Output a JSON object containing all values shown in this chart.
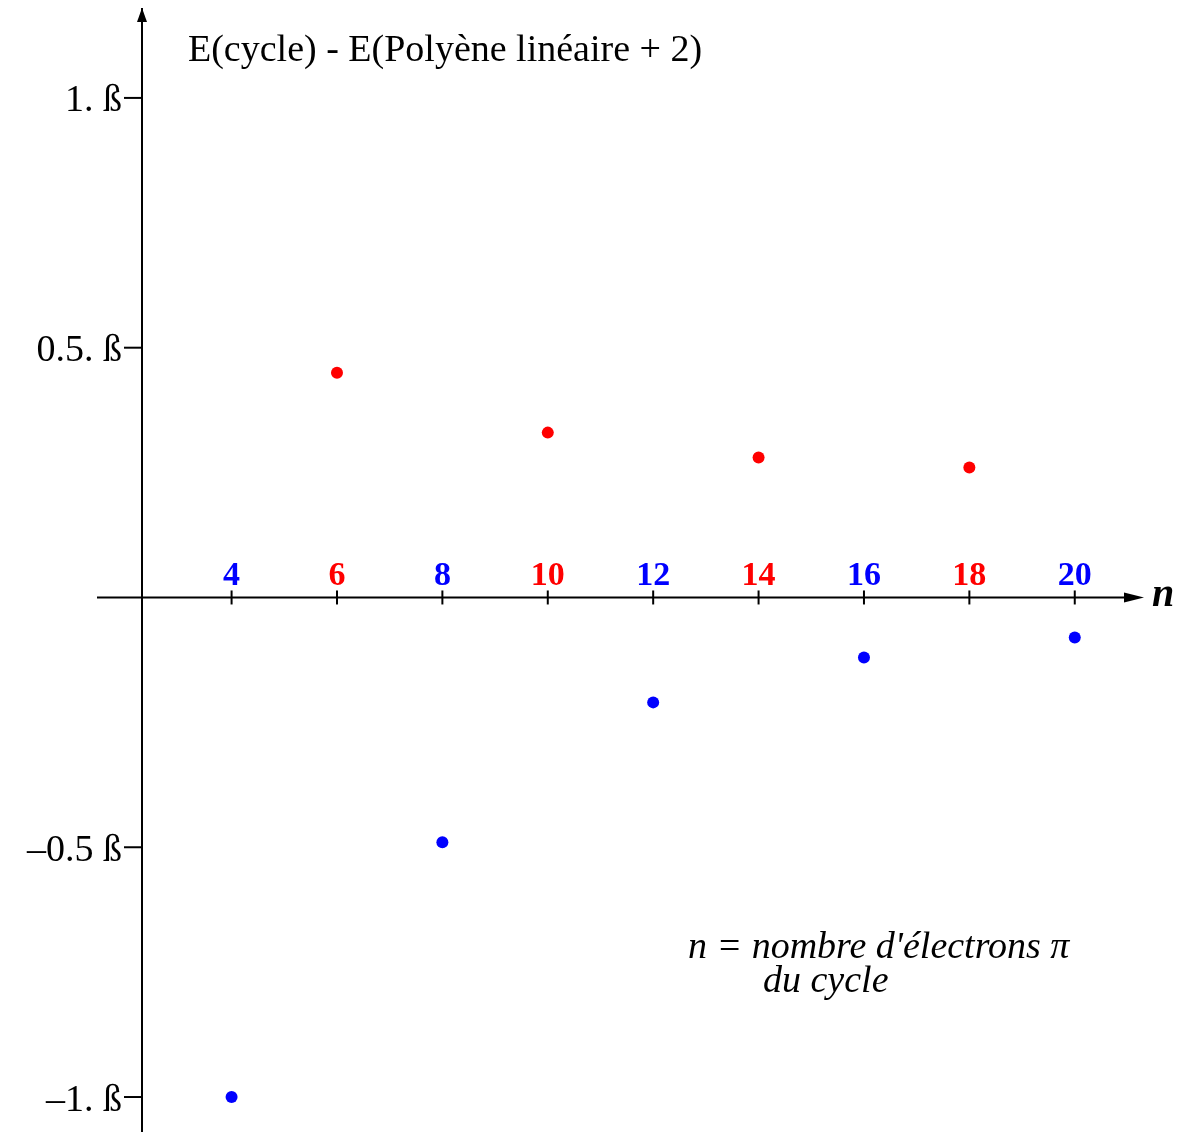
{
  "chart_data": {
    "type": "scatter",
    "title": "E(cycle) - E(Polyène linéaire + 2)",
    "xlabel": "n",
    "annotations": [
      "n = nombre d'électrons π\ndu cycle"
    ],
    "series": [
      {
        "color": "#ff0000",
        "x": [
          6,
          10,
          14,
          18
        ],
        "values": [
          0.45,
          0.33,
          0.28,
          0.26
        ]
      },
      {
        "color": "#0000ff",
        "x": [
          4,
          8,
          12,
          16,
          20
        ],
        "values": [
          -1.0,
          -0.49,
          -0.21,
          -0.12,
          -0.08
        ]
      }
    ],
    "xlim": [
      2.3,
      21.2
    ],
    "xticks": [
      4,
      6,
      8,
      10,
      12,
      14,
      16,
      18,
      20
    ],
    "ylim": [
      -1.07,
      1.18
    ],
    "yticks": [
      {
        "value": 1,
        "label": "1. ß"
      },
      {
        "value": 0.5,
        "label": "0.5. ß"
      },
      {
        "value": -0.5,
        "label": "–0.5 ß"
      },
      {
        "value": -1,
        "label": "–1. ß"
      }
    ],
    "marker": "circle",
    "legend": false,
    "grid": false
  }
}
